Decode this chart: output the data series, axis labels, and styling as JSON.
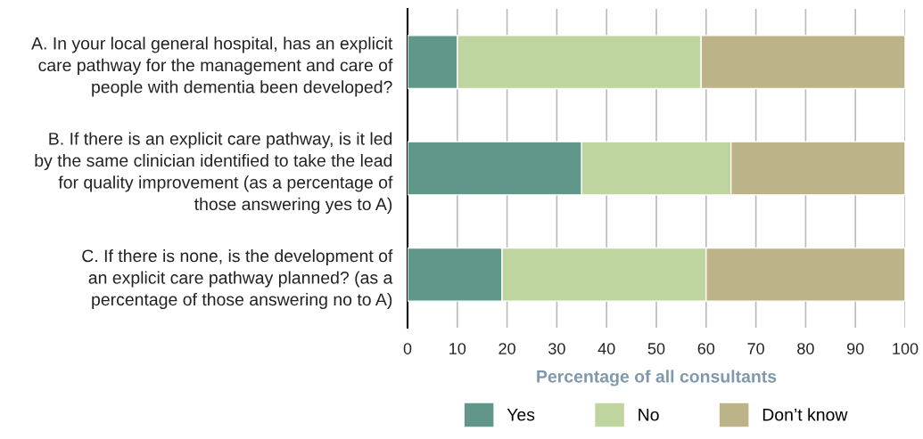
{
  "chart_data": {
    "type": "bar",
    "orientation": "horizontal",
    "stacked": true,
    "categories": [
      "A. In your local general hospital, has an explicit\ncare pathway for the management and care of\npeople with dementia been developed?",
      "B. If there is an explicit care pathway, is it led\nby the same clinician identified to take the lead\nfor quality improvement (as a percentage of\nthose answering yes to A)",
      "C. If there is none, is the development of\nan explicit care pathway planned? (as a\npercentage of those answering no to A)"
    ],
    "series": [
      {
        "name": "Yes",
        "color": "#61978b",
        "values": [
          10,
          35,
          19
        ]
      },
      {
        "name": "No",
        "color": "#bed5a0",
        "values": [
          49,
          30,
          41
        ]
      },
      {
        "name": "Don’t know",
        "color": "#bcb388",
        "values": [
          41,
          35,
          40
        ]
      }
    ],
    "xlabel": "Percentage of all consultants",
    "xlim": [
      0,
      100
    ],
    "xticks": [
      0,
      10,
      20,
      30,
      40,
      50,
      60,
      70,
      80,
      90,
      100
    ],
    "grid": "x",
    "legend": "bottom"
  }
}
